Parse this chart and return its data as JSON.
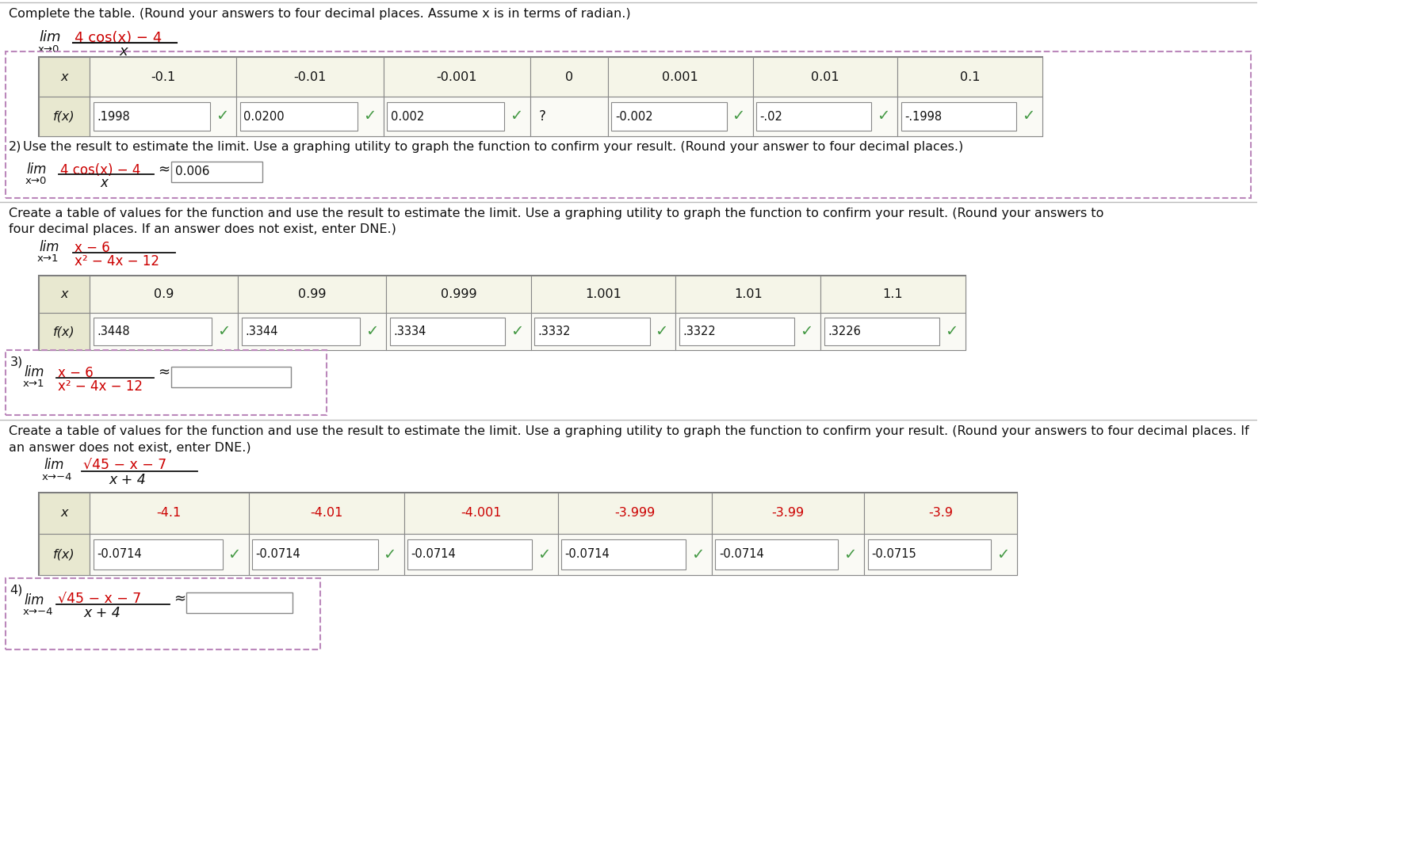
{
  "bg_color": "#ffffff",
  "section1_title": "Complete the table. (Round your answers to four decimal places. Assume x is in terms of radian.)",
  "table1_x_vals": [
    "-0.1",
    "-0.01",
    "-0.001",
    "0",
    "0.001",
    "0.01",
    "0.1"
  ],
  "table1_fx_vals": [
    ".1998",
    "0.0200",
    "0.002",
    "?",
    "-0.002",
    "-.02",
    "-.1998"
  ],
  "table1_fx_checks": [
    true,
    true,
    true,
    false,
    true,
    true,
    true
  ],
  "section2_number": "2)",
  "section2_text": "Use the result to estimate the limit. Use a graphing utility to graph the function to confirm your result. (Round your answer to four decimal places.)",
  "section2_answer": "0.006",
  "section3_text_line1": "Create a table of values for the function and use the result to estimate the limit. Use a graphing utility to graph the function to confirm your result. (Round your answers to",
  "section3_text_line2": "four decimal places. If an answer does not exist, enter DNE.)",
  "table2_x_vals": [
    "0.9",
    "0.99",
    "0.999",
    "1.001",
    "1.01",
    "1.1"
  ],
  "table2_fx_vals": [
    ".3448",
    ".3344",
    ".3334",
    ".3332",
    ".3322",
    ".3226"
  ],
  "table2_fx_checks": [
    true,
    true,
    true,
    true,
    true,
    true
  ],
  "section3_number": "3)",
  "section4_text_line1": "Create a table of values for the function and use the result to estimate the limit. Use a graphing utility to graph the function to confirm your result. (Round your answers to four decimal places. If",
  "section4_text_line2": "an answer does not exist, enter DNE.)",
  "table3_x_vals": [
    "-4.1",
    "-4.01",
    "-4.001",
    "-3.999",
    "-3.99",
    "-3.9"
  ],
  "table3_fx_vals": [
    "-0.0714",
    "-0.0714",
    "-0.0714",
    "-0.0714",
    "-0.0714",
    "-0.0715"
  ],
  "table3_fx_checks": [
    true,
    true,
    true,
    true,
    true,
    true
  ],
  "section4_number": "4)",
  "red_color": "#cc0000",
  "green_check_color": "#449944",
  "table_header_bg": "#e8e8d0",
  "section_box_border": "#bb88bb",
  "text_color": "#111111"
}
